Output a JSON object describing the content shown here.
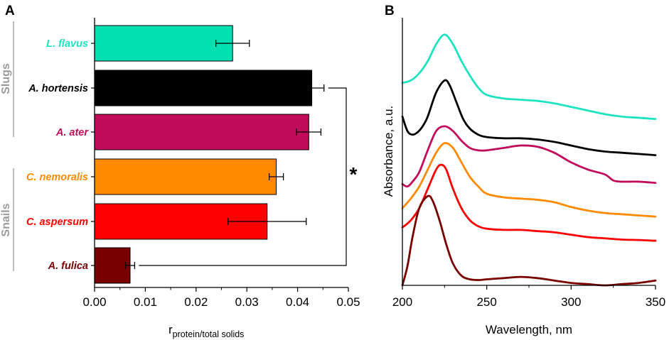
{
  "chart_data": [
    {
      "type": "bar",
      "panel": "A",
      "orientation": "horizontal",
      "categories": [
        "L. flavus",
        "A. hortensis",
        "A. ater",
        "C. nemoralis",
        "C. aspersum",
        "A. fulica"
      ],
      "values": [
        0.0272,
        0.0428,
        0.0422,
        0.0358,
        0.034,
        0.007
      ],
      "errors": [
        0.0033,
        0.0024,
        0.0024,
        0.0014,
        0.0077,
        0.0009
      ],
      "colors": [
        "#00e0b0",
        "#000000",
        "#c00c5a",
        "#ff8a00",
        "#ff0000",
        "#7a0000"
      ],
      "label_colors": [
        "#1de3c0",
        "#000000",
        "#c00c5a",
        "#ff8a00",
        "#ff0000",
        "#7a0000"
      ],
      "groups": [
        {
          "name": "Slugs",
          "categories": [
            "L. flavus",
            "A. hortensis",
            "A. ater"
          ]
        },
        {
          "name": "Snails",
          "categories": [
            "C. nemoralis",
            "C. aspersum",
            "A. fulica"
          ]
        }
      ],
      "xlim": [
        0,
        0.05
      ],
      "xticks": [
        "0.00",
        "0.01",
        "0.02",
        "0.03",
        "0.04",
        "0.05"
      ],
      "xlabel_main": "r",
      "xlabel_sub": "protein/total solids",
      "significance": {
        "between": [
          "A. hortensis",
          "A. fulica"
        ],
        "marker": "*"
      }
    },
    {
      "type": "line",
      "panel": "B",
      "xlabel": "Wavelength, nm",
      "ylabel": "Absorbance, a.u.",
      "xlim": [
        200,
        350
      ],
      "xticks": [
        "200",
        "250",
        "300",
        "350"
      ],
      "y_ticks_shown": false,
      "series": [
        {
          "name": "L. flavus",
          "color": "#1de3c0",
          "x": [
            200,
            205,
            210,
            215,
            220,
            225,
            230,
            235,
            240,
            245,
            250,
            260,
            270,
            280,
            290,
            300,
            310,
            320,
            330,
            340,
            350
          ],
          "y": [
            0.84,
            0.85,
            0.88,
            0.93,
            1.0,
            1.04,
            1.0,
            0.93,
            0.87,
            0.82,
            0.79,
            0.775,
            0.77,
            0.765,
            0.755,
            0.74,
            0.725,
            0.71,
            0.7,
            0.695,
            0.69
          ]
        },
        {
          "name": "A. hortensis",
          "color": "#000000",
          "x": [
            200,
            203,
            206,
            209,
            212,
            215,
            220,
            225,
            228,
            232,
            236,
            240,
            245,
            250,
            260,
            270,
            280,
            290,
            300,
            310,
            320,
            330,
            340,
            350
          ],
          "y": [
            0.7,
            0.64,
            0.625,
            0.635,
            0.66,
            0.7,
            0.8,
            0.85,
            0.83,
            0.76,
            0.69,
            0.65,
            0.625,
            0.615,
            0.61,
            0.61,
            0.605,
            0.595,
            0.58,
            0.565,
            0.555,
            0.55,
            0.545,
            0.54
          ]
        },
        {
          "name": "A. ater",
          "color": "#c00c5a",
          "x": [
            200,
            203,
            206,
            210,
            215,
            220,
            225,
            230,
            235,
            240,
            245,
            250,
            260,
            270,
            280,
            290,
            300,
            310,
            320,
            325,
            330,
            340,
            350
          ],
          "y": [
            0.42,
            0.41,
            0.43,
            0.47,
            0.56,
            0.64,
            0.66,
            0.64,
            0.6,
            0.57,
            0.56,
            0.56,
            0.57,
            0.58,
            0.575,
            0.55,
            0.51,
            0.48,
            0.46,
            0.435,
            0.43,
            0.43,
            0.425
          ]
        },
        {
          "name": "C. nemoralis",
          "color": "#ff8a00",
          "x": [
            200,
            205,
            210,
            215,
            220,
            225,
            230,
            235,
            240,
            245,
            250,
            260,
            270,
            280,
            290,
            300,
            310,
            320,
            330,
            340,
            350
          ],
          "y": [
            0.32,
            0.36,
            0.41,
            0.48,
            0.55,
            0.59,
            0.57,
            0.51,
            0.45,
            0.41,
            0.38,
            0.365,
            0.36,
            0.355,
            0.345,
            0.325,
            0.31,
            0.3,
            0.295,
            0.29,
            0.285
          ]
        },
        {
          "name": "C. aspersum",
          "color": "#ff0000",
          "x": [
            200,
            205,
            210,
            215,
            220,
            223,
            226,
            230,
            235,
            240,
            245,
            250,
            260,
            270,
            280,
            290,
            300,
            310,
            320,
            330,
            340,
            350
          ],
          "y": [
            0.24,
            0.27,
            0.32,
            0.4,
            0.48,
            0.5,
            0.48,
            0.4,
            0.32,
            0.27,
            0.245,
            0.235,
            0.23,
            0.23,
            0.225,
            0.22,
            0.21,
            0.2,
            0.195,
            0.19,
            0.188,
            0.185
          ]
        },
        {
          "name": "A. fulica",
          "color": "#7a0000",
          "x": [
            200,
            203,
            206,
            210,
            215,
            218,
            222,
            226,
            230,
            235,
            240,
            245,
            250,
            260,
            270,
            280,
            290,
            300,
            310,
            320,
            330,
            340,
            350
          ],
          "y": [
            0.0,
            0.08,
            0.2,
            0.32,
            0.37,
            0.35,
            0.27,
            0.17,
            0.09,
            0.04,
            0.025,
            0.022,
            0.025,
            0.03,
            0.035,
            0.03,
            0.02,
            0.01,
            0.005,
            0.0,
            0.005,
            0.01,
            0.02
          ]
        }
      ]
    }
  ]
}
